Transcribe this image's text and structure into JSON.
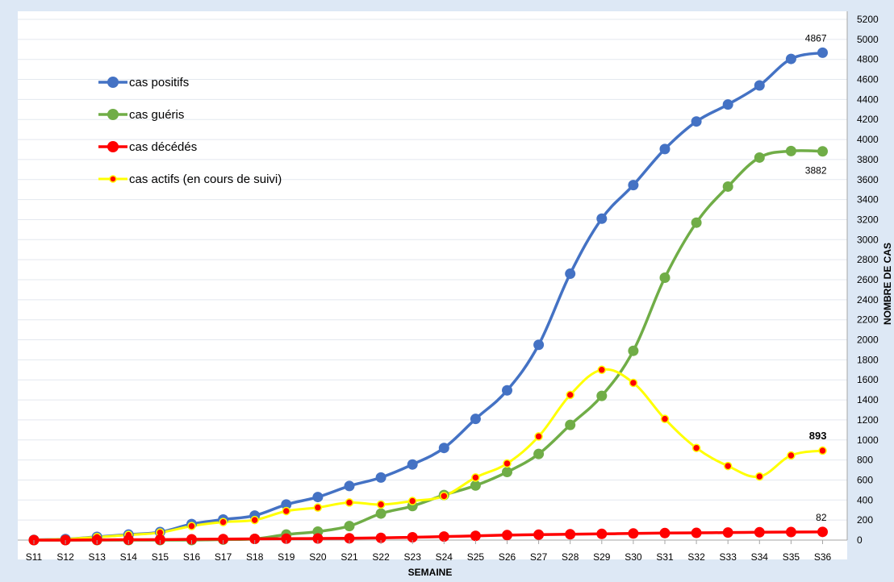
{
  "chart_data": {
    "type": "line",
    "title": "",
    "xlabel": "SEMAINE",
    "ylabel": "NOMBRE DE CAS",
    "ylim": [
      0,
      5200
    ],
    "ytick_step": 200,
    "grid": true,
    "legend_position": "top-left",
    "categories": [
      "S11",
      "S12",
      "S13",
      "S14",
      "S15",
      "S16",
      "S17",
      "S18",
      "S19",
      "S20",
      "S21",
      "S22",
      "S23",
      "S24",
      "S25",
      "S26",
      "S27",
      "S28",
      "S29",
      "S30",
      "S31",
      "S32",
      "S33",
      "S34",
      "S35",
      "S36"
    ],
    "series": [
      {
        "name": "cas positifs",
        "color": "#4472c4",
        "marker": "circle-large",
        "values": [
          2,
          10,
          32,
          55,
          80,
          160,
          205,
          245,
          355,
          430,
          540,
          625,
          755,
          920,
          1210,
          1495,
          1950,
          2660,
          3210,
          3545,
          3905,
          4180,
          4350,
          4540,
          4805,
          4867
        ]
      },
      {
        "name": "cas guéris",
        "color": "#70ad47",
        "marker": "circle-large",
        "values": [
          0,
          0,
          0,
          0,
          0,
          0,
          5,
          12,
          55,
          85,
          140,
          265,
          340,
          450,
          545,
          680,
          860,
          1150,
          1440,
          1890,
          2620,
          3170,
          3530,
          3820,
          3885,
          3882
        ]
      },
      {
        "name": "cas décédés",
        "color": "#ff0000",
        "marker": "circle-large",
        "values": [
          0,
          0,
          2,
          4,
          5,
          8,
          10,
          12,
          14,
          16,
          18,
          22,
          28,
          35,
          42,
          50,
          54,
          58,
          62,
          66,
          70,
          72,
          75,
          78,
          80,
          82
        ]
      },
      {
        "name": "cas actifs (en cours de suivi)",
        "color": "#ffff00",
        "marker": "dot-red",
        "values": [
          2,
          10,
          30,
          51,
          75,
          140,
          180,
          200,
          290,
          325,
          375,
          355,
          390,
          440,
          625,
          765,
          1035,
          1450,
          1700,
          1570,
          1210,
          920,
          740,
          635,
          845,
          893
        ]
      }
    ],
    "annotations": [
      {
        "text": "4867",
        "series": "cas positifs",
        "index": 25,
        "anchor": "above"
      },
      {
        "text": "3882",
        "series": "cas guéris",
        "index": 25,
        "anchor": "below"
      },
      {
        "text": "893",
        "series": "cas actifs (en cours de suivi)",
        "index": 25,
        "anchor": "above",
        "bold": true
      },
      {
        "text": "82",
        "series": "cas décédés",
        "index": 25,
        "anchor": "above"
      }
    ]
  }
}
